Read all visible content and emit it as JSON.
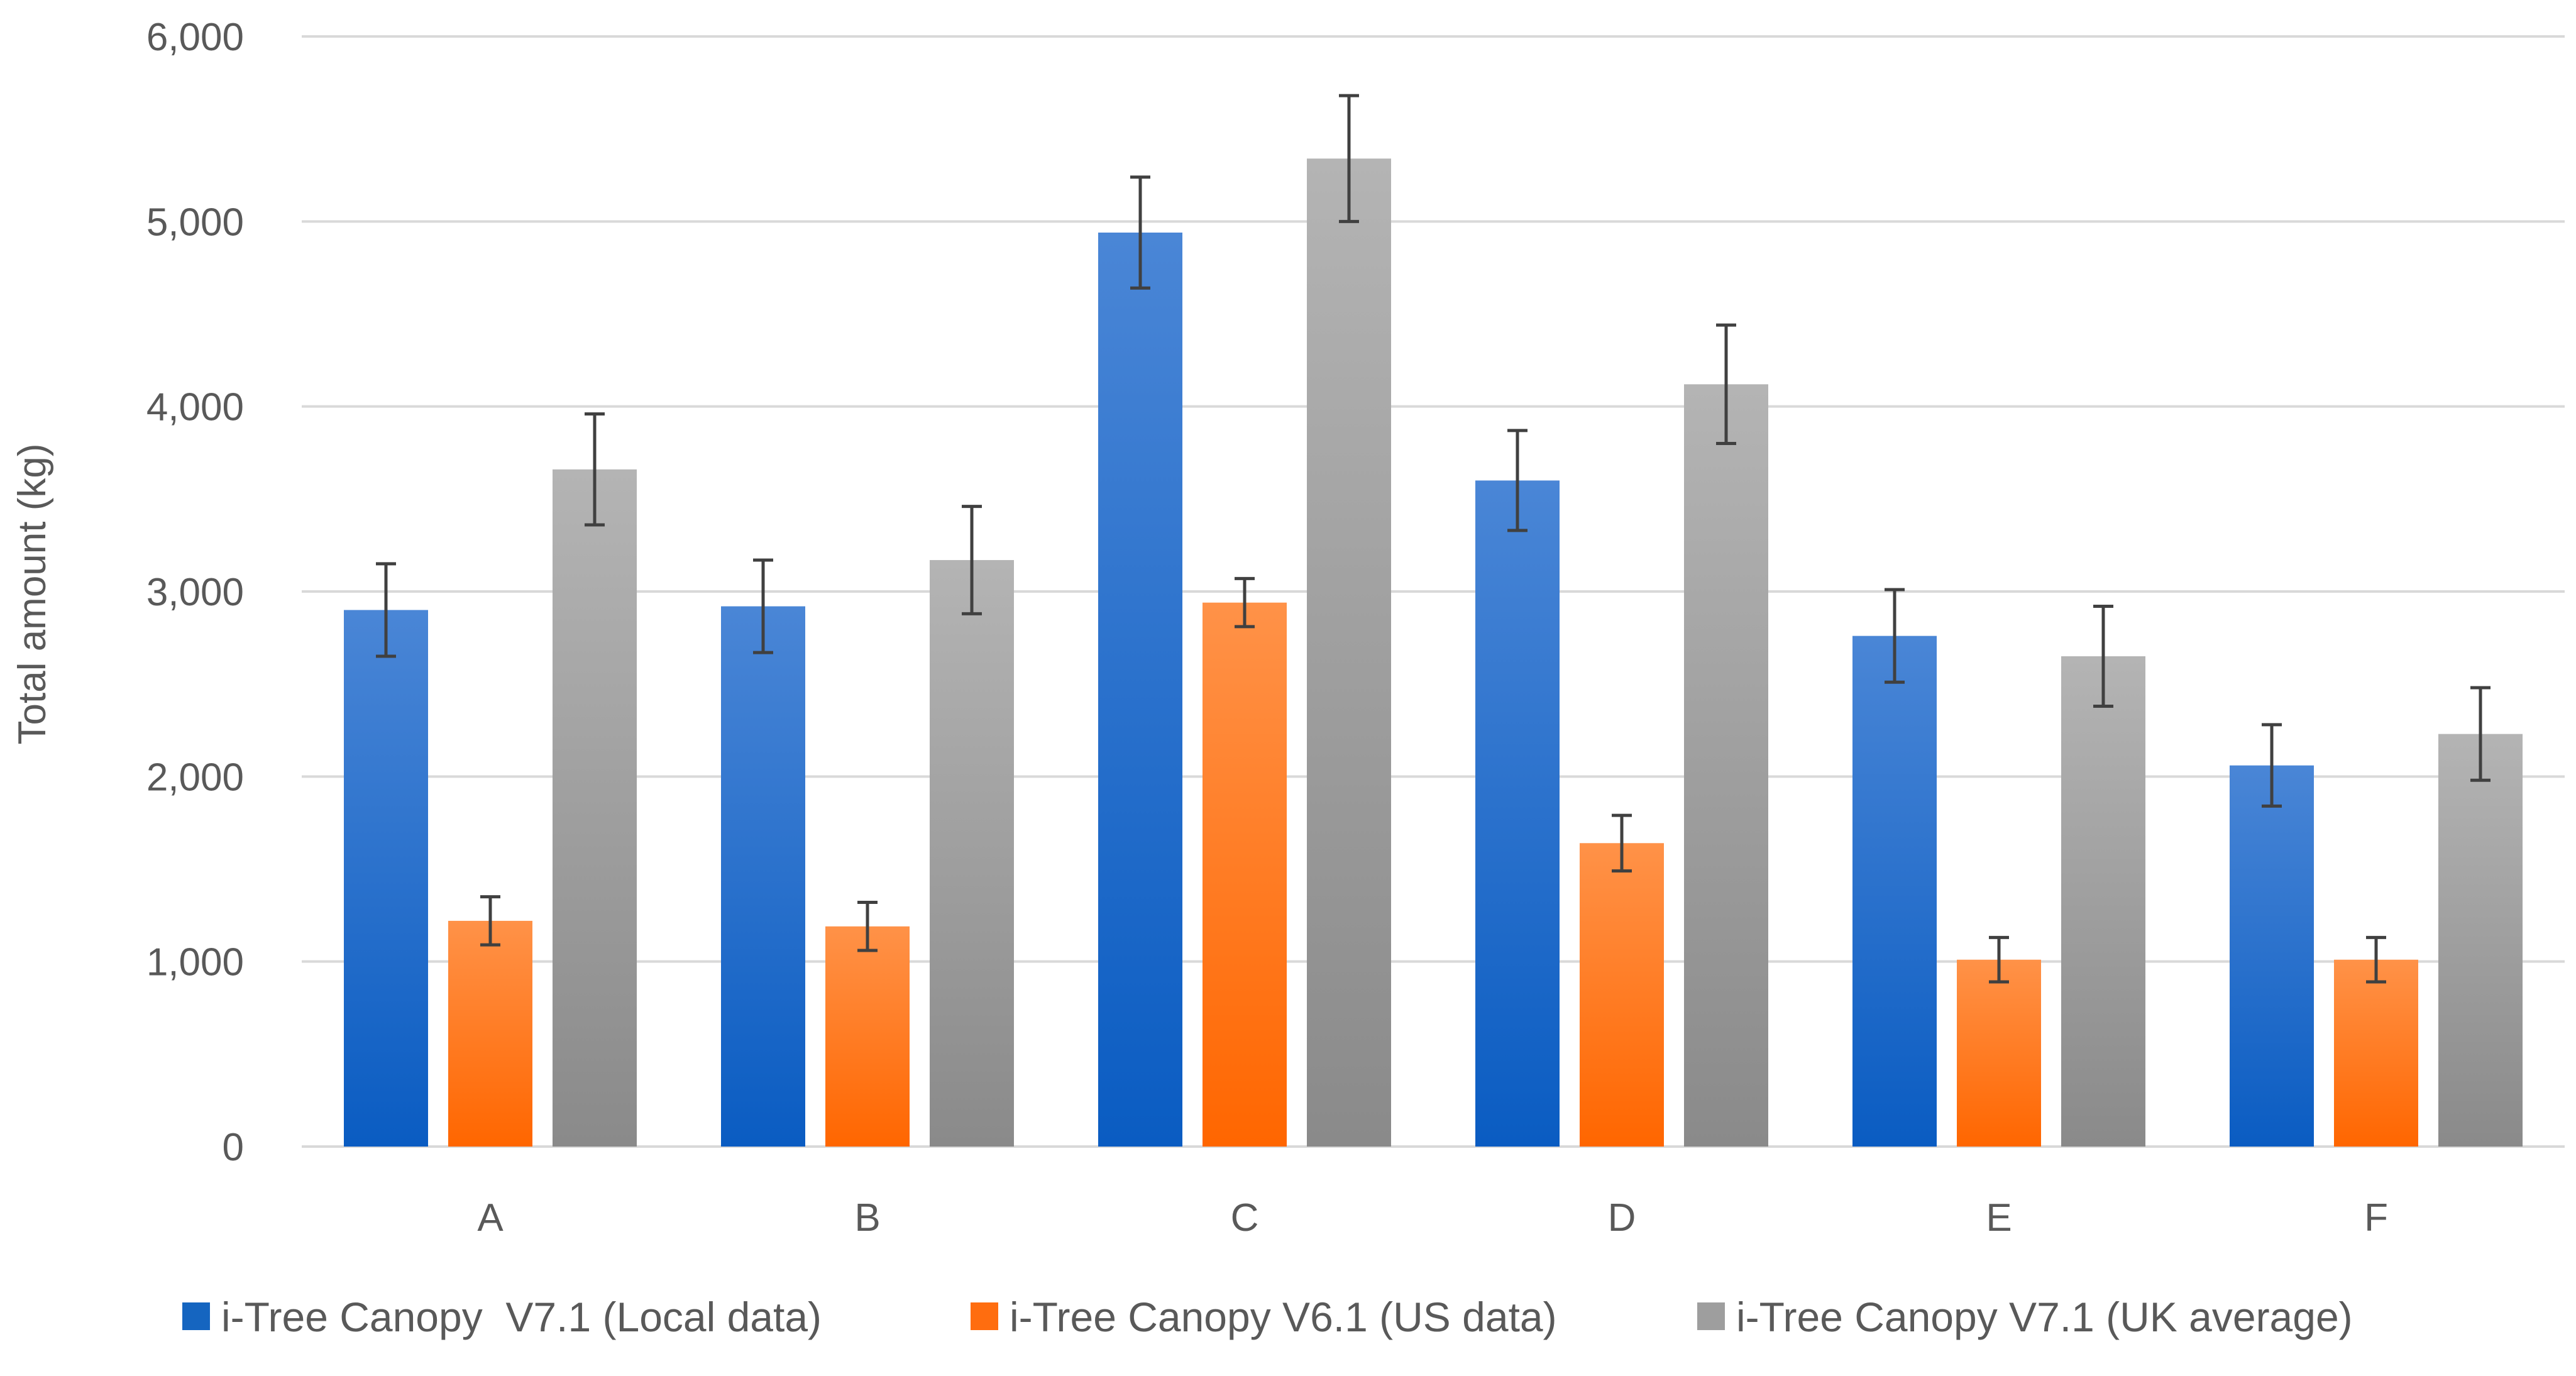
{
  "chart_data": {
    "type": "bar",
    "title": "",
    "xlabel": "",
    "ylabel": "Total amount (kg)",
    "ylim": [
      0,
      6000
    ],
    "yticks": [
      0,
      1000,
      2000,
      3000,
      4000,
      5000,
      6000
    ],
    "ytick_labels": [
      "0",
      "1,000",
      "2,000",
      "3,000",
      "4,000",
      "5,000",
      "6,000"
    ],
    "grid": true,
    "legend_position": "bottom",
    "categories": [
      "A",
      "B",
      "C",
      "D",
      "E",
      "F"
    ],
    "series": [
      {
        "name": "i-Tree Canopy  V7.1 (Local data)",
        "color_top": "#4a86d6",
        "color_bottom": "#0a5cc2",
        "legend_color": "#1565c0",
        "values": [
          2900,
          2920,
          4940,
          3600,
          2760,
          2060
        ],
        "errors": [
          250,
          250,
          300,
          270,
          250,
          220
        ]
      },
      {
        "name": "i-Tree Canopy V6.1 (US data)",
        "color_top": "#ff9248",
        "color_bottom": "#ff6600",
        "legend_color": "#ff6d0f",
        "values": [
          1220,
          1190,
          2940,
          1640,
          1010,
          1010
        ],
        "errors": [
          130,
          130,
          130,
          150,
          120,
          120
        ]
      },
      {
        "name": "i-Tree Canopy V7.1 (UK average)",
        "color_top": "#b4b4b4",
        "color_bottom": "#8a8a8a",
        "legend_color": "#9e9e9e",
        "values": [
          3660,
          3170,
          5340,
          4120,
          2650,
          2230
        ],
        "errors": [
          300,
          290,
          340,
          320,
          270,
          250
        ]
      }
    ]
  }
}
